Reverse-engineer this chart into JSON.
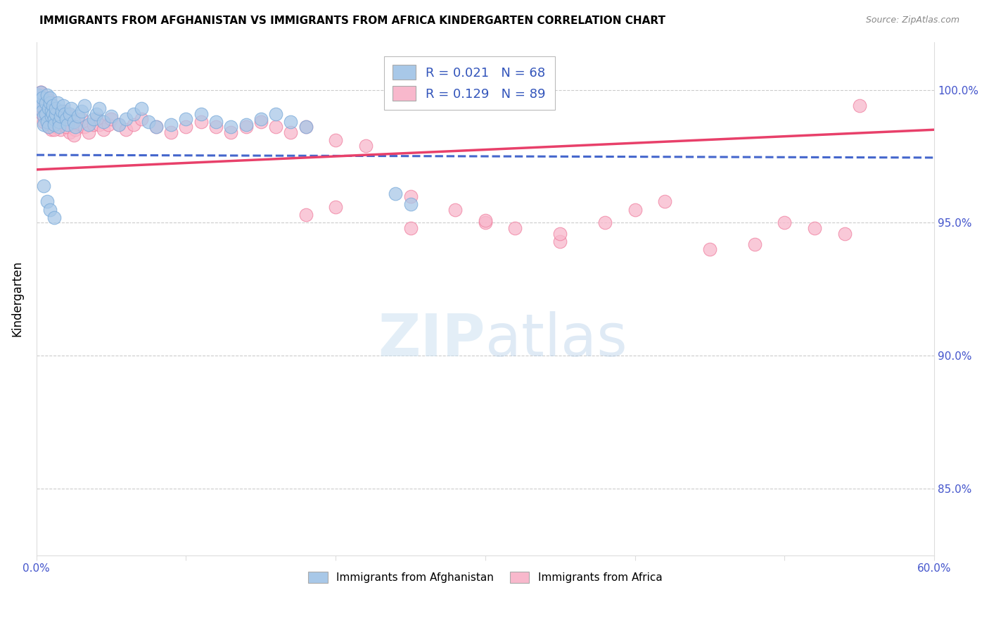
{
  "title": "IMMIGRANTS FROM AFGHANISTAN VS IMMIGRANTS FROM AFRICA KINDERGARTEN CORRELATION CHART",
  "source": "Source: ZipAtlas.com",
  "ylabel": "Kindergarten",
  "xlim": [
    0.0,
    0.6
  ],
  "ylim": [
    0.825,
    1.018
  ],
  "ytick_positions": [
    0.85,
    0.9,
    0.95,
    1.0
  ],
  "ytick_labels": [
    "85.0%",
    "90.0%",
    "95.0%",
    "100.0%"
  ],
  "afghanistan_color": "#a8c8e8",
  "afghanistan_edge": "#7aabda",
  "africa_color": "#f8b8cc",
  "africa_edge": "#f080a0",
  "afghanistan_line_color": "#4466cc",
  "africa_line_color": "#e8406a",
  "legend_text_color": "#3355bb",
  "watermark_color": "#c8dff0",
  "watermark_text_color": "#aaccdd",
  "grid_color": "#cccccc",
  "tick_color": "#4455cc",
  "afg_scatter_x": [
    0.001,
    0.002,
    0.003,
    0.003,
    0.004,
    0.004,
    0.005,
    0.005,
    0.006,
    0.006,
    0.007,
    0.007,
    0.008,
    0.008,
    0.009,
    0.009,
    0.01,
    0.01,
    0.011,
    0.011,
    0.012,
    0.012,
    0.013,
    0.013,
    0.014,
    0.015,
    0.015,
    0.016,
    0.017,
    0.018,
    0.019,
    0.02,
    0.021,
    0.022,
    0.023,
    0.025,
    0.026,
    0.028,
    0.03,
    0.032,
    0.035,
    0.038,
    0.04,
    0.042,
    0.045,
    0.05,
    0.055,
    0.06,
    0.065,
    0.07,
    0.075,
    0.08,
    0.09,
    0.1,
    0.11,
    0.12,
    0.13,
    0.14,
    0.15,
    0.16,
    0.17,
    0.18,
    0.005,
    0.007,
    0.009,
    0.012,
    0.24,
    0.25
  ],
  "afg_scatter_y": [
    0.998,
    0.996,
    0.994,
    0.999,
    0.997,
    0.992,
    0.99,
    0.987,
    0.991,
    0.995,
    0.998,
    0.988,
    0.986,
    0.993,
    0.995,
    0.997,
    0.99,
    0.992,
    0.994,
    0.991,
    0.989,
    0.987,
    0.991,
    0.993,
    0.995,
    0.988,
    0.986,
    0.99,
    0.992,
    0.994,
    0.991,
    0.989,
    0.987,
    0.991,
    0.993,
    0.988,
    0.986,
    0.99,
    0.992,
    0.994,
    0.987,
    0.989,
    0.991,
    0.993,
    0.988,
    0.99,
    0.987,
    0.989,
    0.991,
    0.993,
    0.988,
    0.986,
    0.987,
    0.989,
    0.991,
    0.988,
    0.986,
    0.987,
    0.989,
    0.991,
    0.988,
    0.986,
    0.964,
    0.958,
    0.955,
    0.952,
    0.961,
    0.957
  ],
  "afr_scatter_x": [
    0.001,
    0.002,
    0.003,
    0.003,
    0.004,
    0.004,
    0.005,
    0.005,
    0.006,
    0.007,
    0.007,
    0.008,
    0.008,
    0.009,
    0.009,
    0.01,
    0.01,
    0.011,
    0.012,
    0.012,
    0.013,
    0.014,
    0.015,
    0.015,
    0.016,
    0.017,
    0.018,
    0.019,
    0.02,
    0.021,
    0.022,
    0.023,
    0.024,
    0.025,
    0.026,
    0.028,
    0.03,
    0.032,
    0.035,
    0.038,
    0.04,
    0.042,
    0.045,
    0.048,
    0.05,
    0.055,
    0.06,
    0.065,
    0.07,
    0.08,
    0.09,
    0.1,
    0.11,
    0.12,
    0.13,
    0.14,
    0.15,
    0.16,
    0.17,
    0.18,
    0.2,
    0.22,
    0.25,
    0.28,
    0.3,
    0.32,
    0.35,
    0.38,
    0.4,
    0.42,
    0.45,
    0.48,
    0.5,
    0.52,
    0.54,
    0.18,
    0.2,
    0.25,
    0.3,
    0.35,
    0.003,
    0.005,
    0.007,
    0.01,
    0.012,
    0.015,
    0.02,
    0.025,
    0.55
  ],
  "afr_scatter_y": [
    0.997,
    0.995,
    0.999,
    0.993,
    0.996,
    0.991,
    0.988,
    0.992,
    0.994,
    0.997,
    0.989,
    0.986,
    0.991,
    0.993,
    0.996,
    0.988,
    0.985,
    0.99,
    0.992,
    0.988,
    0.986,
    0.99,
    0.992,
    0.988,
    0.985,
    0.987,
    0.99,
    0.992,
    0.988,
    0.986,
    0.984,
    0.987,
    0.99,
    0.988,
    0.985,
    0.987,
    0.989,
    0.986,
    0.984,
    0.987,
    0.989,
    0.987,
    0.985,
    0.987,
    0.989,
    0.987,
    0.985,
    0.987,
    0.989,
    0.986,
    0.984,
    0.986,
    0.988,
    0.986,
    0.984,
    0.986,
    0.988,
    0.986,
    0.984,
    0.986,
    0.981,
    0.979,
    0.96,
    0.955,
    0.95,
    0.948,
    0.943,
    0.95,
    0.955,
    0.958,
    0.94,
    0.942,
    0.95,
    0.948,
    0.946,
    0.953,
    0.956,
    0.948,
    0.951,
    0.946,
    0.999,
    0.994,
    0.991,
    0.987,
    0.985,
    0.99,
    0.986,
    0.983,
    0.994
  ],
  "afg_line_x": [
    0.0,
    0.6
  ],
  "afg_line_y": [
    0.9755,
    0.9745
  ],
  "afr_line_x": [
    0.0,
    0.6
  ],
  "afr_line_y": [
    0.97,
    0.985
  ]
}
